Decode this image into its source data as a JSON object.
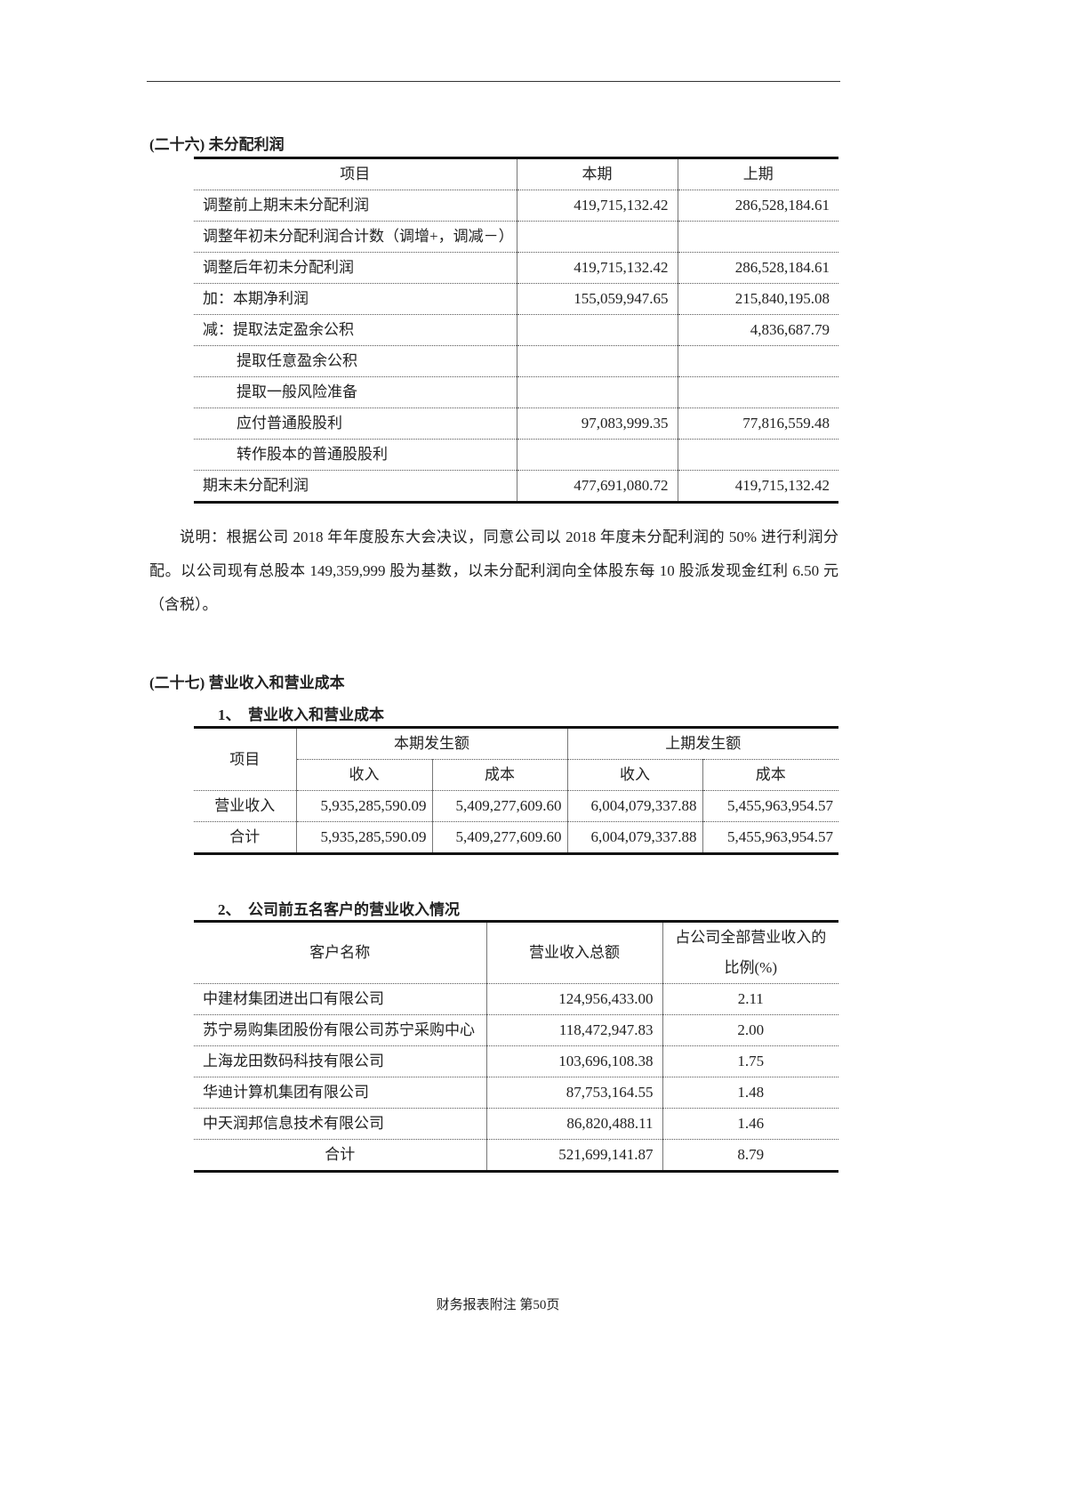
{
  "s26": {
    "title": "(二十六) 未分配利润",
    "headers": [
      "项目",
      "本期",
      "上期"
    ],
    "rows": [
      {
        "item": "调整前上期末未分配利润",
        "cur": "419,715,132.42",
        "prev": "286,528,184.61"
      },
      {
        "item": "调整年初未分配利润合计数（调增+，调减－）",
        "cur": "",
        "prev": ""
      },
      {
        "item": "调整后年初未分配利润",
        "cur": "419,715,132.42",
        "prev": "286,528,184.61"
      },
      {
        "item": "加：本期净利润",
        "cur": "155,059,947.65",
        "prev": "215,840,195.08"
      },
      {
        "item": "减：提取法定盈余公积",
        "cur": "",
        "prev": "4,836,687.79"
      },
      {
        "item": "提取任意盈余公积",
        "cur": "",
        "prev": ""
      },
      {
        "item": "提取一般风险准备",
        "cur": "",
        "prev": ""
      },
      {
        "item": "应付普通股股利",
        "cur": "97,083,999.35",
        "prev": "77,816,559.48"
      },
      {
        "item": "转作股本的普通股股利",
        "cur": "",
        "prev": ""
      },
      {
        "item": "期末未分配利润",
        "cur": "477,691,080.72",
        "prev": "419,715,132.42"
      }
    ],
    "note": "说明：根据公司 2018 年年度股东大会决议，同意公司以 2018 年度未分配利润的 50% 进行利润分配。以公司现有总股本 149,359,999 股为基数，以未分配利润向全体股东每 10 股派发现金红利 6.50 元（含税）。"
  },
  "s27": {
    "title": "(二十七) 营业收入和营业成本",
    "sub1": "1、　营业收入和营业成本",
    "t1": {
      "item": "项目",
      "cur": "本期发生额",
      "prev": "上期发生额",
      "income": "收入",
      "cost": "成本",
      "rows": [
        {
          "item": "营业收入",
          "v": [
            "5,935,285,590.09",
            "5,409,277,609.60",
            "6,004,079,337.88",
            "5,455,963,954.57"
          ]
        },
        {
          "item": "合计",
          "v": [
            "5,935,285,590.09",
            "5,409,277,609.60",
            "6,004,079,337.88",
            "5,455,963,954.57"
          ]
        }
      ]
    },
    "sub2": "2、　公司前五名客户的营业收入情况",
    "t2": {
      "headers": [
        "客户名称",
        "营业收入总额",
        "占公司全部营业收入的比例(%)"
      ],
      "rows": [
        {
          "name": "中建材集团进出口有限公司",
          "amt": "124,956,433.00",
          "pct": "2.11"
        },
        {
          "name": "苏宁易购集团股份有限公司苏宁采购中心",
          "amt": "118,472,947.83",
          "pct": "2.00"
        },
        {
          "name": "上海龙田数码科技有限公司",
          "amt": "103,696,108.38",
          "pct": "1.75"
        },
        {
          "name": "华迪计算机集团有限公司",
          "amt": "87,753,164.55",
          "pct": "1.48"
        },
        {
          "name": "中天润邦信息技术有限公司",
          "amt": "86,820,488.11",
          "pct": "1.46"
        },
        {
          "name": "合计",
          "amt": "521,699,141.87",
          "pct": "8.79"
        }
      ]
    }
  },
  "footer": "财务报表附注 第50页"
}
